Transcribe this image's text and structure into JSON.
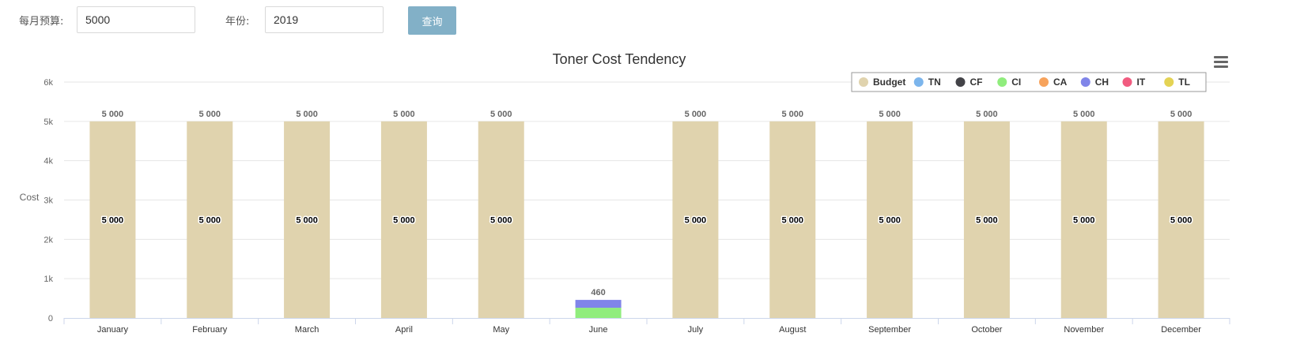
{
  "form": {
    "budget_label": "每月预算:",
    "budget_value": "5000",
    "year_label": "年份:",
    "year_value": "2019",
    "query_button": "查询"
  },
  "chart_menu_icon": "hamburger-menu-icon",
  "colors": {
    "Budget": "#e0d3ae",
    "TN": "#7cb5ec",
    "CF": "#434348",
    "CI": "#90ed7d",
    "CA": "#f7a35c",
    "CH": "#8085e9",
    "IT": "#f15c80",
    "TL": "#e4d354",
    "grid": "#e6e6e6",
    "axis": "#ccd6eb"
  },
  "chart_data": {
    "type": "bar",
    "stacked": true,
    "title": "Toner Cost Tendency",
    "xlabel": "",
    "ylabel": "Cost",
    "ylim": [
      0,
      6000
    ],
    "yticks": [
      0,
      1000,
      2000,
      3000,
      4000,
      5000,
      6000
    ],
    "ytick_labels": [
      "0",
      "1k",
      "2k",
      "3k",
      "4k",
      "5k",
      "6k"
    ],
    "grid": true,
    "legend_position": "top-right",
    "legend": [
      "Budget",
      "TN",
      "CF",
      "CI",
      "CA",
      "CH",
      "IT",
      "TL"
    ],
    "categories": [
      "January",
      "February",
      "March",
      "April",
      "May",
      "June",
      "July",
      "August",
      "September",
      "October",
      "November",
      "December"
    ],
    "series": [
      {
        "name": "Budget",
        "values": [
          5000,
          5000,
          5000,
          5000,
          5000,
          0,
          5000,
          5000,
          5000,
          5000,
          5000,
          5000
        ]
      },
      {
        "name": "TN",
        "values": [
          0,
          0,
          0,
          0,
          0,
          0,
          0,
          0,
          0,
          0,
          0,
          0
        ]
      },
      {
        "name": "CF",
        "values": [
          0,
          0,
          0,
          0,
          0,
          0,
          0,
          0,
          0,
          0,
          0,
          0
        ]
      },
      {
        "name": "CI",
        "values": [
          0,
          0,
          0,
          0,
          0,
          260,
          0,
          0,
          0,
          0,
          0,
          0
        ]
      },
      {
        "name": "CA",
        "values": [
          0,
          0,
          0,
          0,
          0,
          0,
          0,
          0,
          0,
          0,
          0,
          0
        ]
      },
      {
        "name": "CH",
        "values": [
          0,
          0,
          0,
          0,
          0,
          200,
          0,
          0,
          0,
          0,
          0,
          0
        ]
      },
      {
        "name": "IT",
        "values": [
          0,
          0,
          0,
          0,
          0,
          0,
          0,
          0,
          0,
          0,
          0,
          0
        ]
      },
      {
        "name": "TL",
        "values": [
          0,
          0,
          0,
          0,
          0,
          0,
          0,
          0,
          0,
          0,
          0,
          0
        ]
      }
    ],
    "total_labels": [
      "5 000",
      "5 000",
      "5 000",
      "5 000",
      "5 000",
      "460",
      "5 000",
      "5 000",
      "5 000",
      "5 000",
      "5 000",
      "5 000"
    ],
    "inner_labels": [
      "5 000",
      "5 000",
      "5 000",
      "5 000",
      "5 000",
      "",
      "5 000",
      "5 000",
      "5 000",
      "5 000",
      "5 000",
      "5 000"
    ]
  }
}
